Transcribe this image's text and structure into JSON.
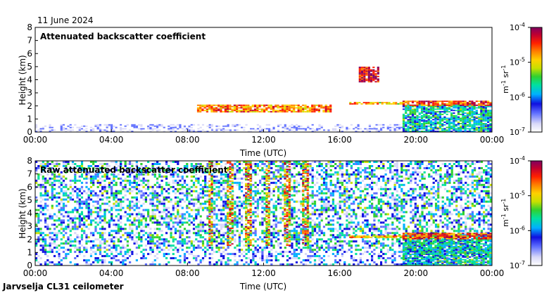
{
  "date": "11 June 2024",
  "station": "Jarvselja CL31 ceilometer",
  "colorbar": {
    "unit_base": "m",
    "unit_base_exp": "-1",
    "unit_sr": " sr",
    "unit_sr_exp": "-1",
    "tick_base": "10",
    "tick_exps": [
      "-4",
      "-5",
      "-6",
      "-7"
    ],
    "colors": [
      "#ffffff",
      "#d8d8f8",
      "#6070ff",
      "#1010e0",
      "#00b0ff",
      "#00e0a0",
      "#30d030",
      "#c8e000",
      "#ffd000",
      "#ff8000",
      "#ff2000",
      "#c00030",
      "#800060"
    ]
  },
  "chart_data": [
    {
      "type": "heatmap",
      "title": "Attenuated backscatter coefficient",
      "xlabel": "Time (UTC)",
      "ylabel": "Height (km)",
      "xlim": [
        0,
        24
      ],
      "ylim": [
        0,
        8
      ],
      "xticks": [
        "00:00",
        "04:00",
        "08:00",
        "12:00",
        "16:00",
        "20:00",
        "00:00"
      ],
      "yticks": [
        "0",
        "1",
        "2",
        "3",
        "4",
        "5",
        "6",
        "7",
        "8"
      ],
      "color_scale": "log",
      "color_range": [
        1e-07,
        0.0001
      ],
      "features": [
        {
          "kind": "boundary-layer aerosol",
          "t": [
            0,
            19.3
          ],
          "z": [
            0,
            0.6
          ],
          "level": -6.8
        },
        {
          "kind": "cloud base",
          "t": [
            8.5,
            15.5
          ],
          "z": [
            1.5,
            2.1
          ],
          "level": -4.8
        },
        {
          "kind": "cloud base",
          "t": [
            16.5,
            19.3
          ],
          "z": [
            2.1,
            2.3
          ],
          "level": -5.0
        },
        {
          "kind": "high cloud",
          "t": [
            17.0,
            18.0
          ],
          "z": [
            3.8,
            4.9
          ],
          "level": -4.4
        },
        {
          "kind": "mixed layer",
          "t": [
            19.3,
            24.0
          ],
          "z": [
            0,
            2.1
          ],
          "level": -5.8
        },
        {
          "kind": "cloud top",
          "t": [
            19.3,
            24.0
          ],
          "z": [
            2.0,
            2.4
          ],
          "level": -4.6
        }
      ]
    },
    {
      "type": "heatmap",
      "title": "Raw attenuated backscatter coefficient",
      "xlabel": "Time (UTC)",
      "ylabel": "Height (km)",
      "xlim": [
        0,
        24
      ],
      "ylim": [
        0,
        8
      ],
      "xticks": [
        "00:00",
        "04:00",
        "08:00",
        "12:00",
        "16:00",
        "20:00",
        "00:00"
      ],
      "yticks": [
        "0",
        "1",
        "2",
        "3",
        "4",
        "5",
        "6",
        "7",
        "8"
      ],
      "color_scale": "log",
      "color_range": [
        1e-07,
        0.0001
      ],
      "features": [
        {
          "kind": "noise background",
          "t": [
            0,
            24
          ],
          "z": [
            0,
            8
          ],
          "level": -6.2
        },
        {
          "kind": "precipitation streaks",
          "t": [
            8.5,
            14.5
          ],
          "z": [
            1.5,
            8
          ],
          "level": -5.0
        },
        {
          "kind": "cloud base",
          "t": [
            16.5,
            19.3
          ],
          "z": [
            2.1,
            2.3
          ],
          "level": -5.0
        },
        {
          "kind": "mixed layer",
          "t": [
            19.3,
            24.0
          ],
          "z": [
            0,
            2.4
          ],
          "level": -5.8
        },
        {
          "kind": "cloud top",
          "t": [
            19.3,
            24.0
          ],
          "z": [
            2.0,
            2.5
          ],
          "level": -4.6
        }
      ]
    }
  ]
}
